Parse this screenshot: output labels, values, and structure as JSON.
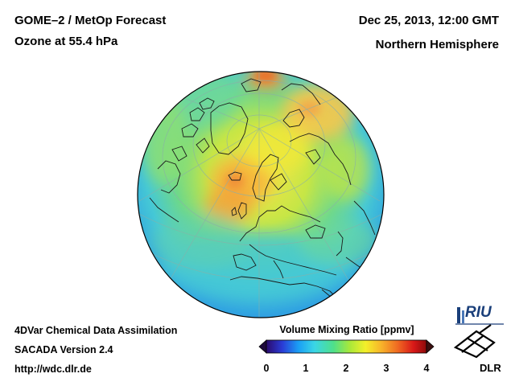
{
  "header": {
    "title_line1": "GOME–2 / MetOp Forecast",
    "title_line2": "Ozone at 55.4 hPa",
    "date": "Dec 25, 2013, 12:00 GMT",
    "region": "Northern Hemisphere"
  },
  "footer": {
    "line1": "4DVar Chemical Data Assimilation",
    "line2": "SACADA Version 2.4",
    "line3": "http://wdc.dlr.de"
  },
  "colorbar": {
    "title": "Volume Mixing Ratio [ppmv]",
    "ticks": [
      "0",
      "1",
      "2",
      "3",
      "4"
    ],
    "range": [
      0,
      4
    ],
    "colors": [
      "#2b0a6e",
      "#2a3cd6",
      "#1a9ef5",
      "#3ad6e6",
      "#4fe08a",
      "#a8e83a",
      "#f4f02a",
      "#f8b22a",
      "#f06a22",
      "#d81818",
      "#8c0a0a"
    ]
  },
  "logos": {
    "riu": "RIU",
    "dlr": "DLR"
  },
  "map": {
    "projection": "orthographic",
    "hemisphere": "Northern"
  }
}
